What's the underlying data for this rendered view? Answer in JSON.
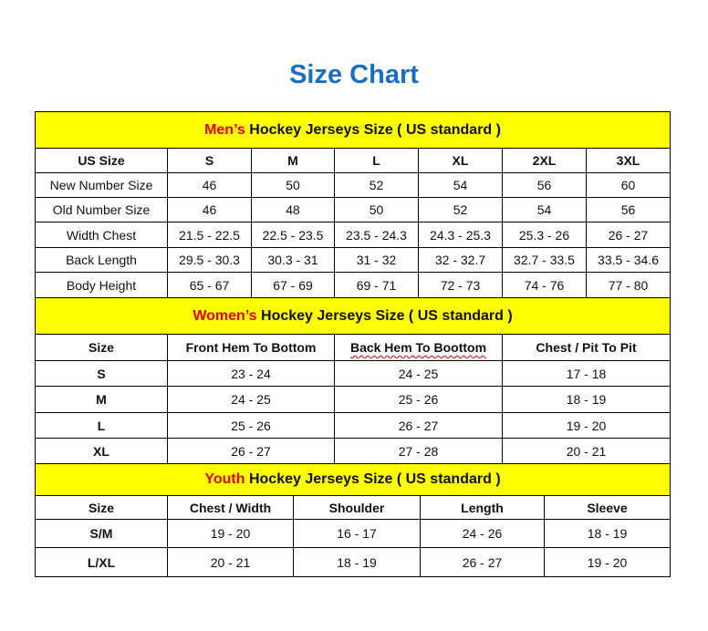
{
  "title": "Size Chart",
  "colors": {
    "title": "#1a6fc0",
    "section_bg": "#ffff00",
    "accent_red": "#e00000"
  },
  "sections": [
    {
      "title_highlight": "Men’s",
      "title_rest": " Hockey Jerseys Size ( US standard )",
      "headers": [
        "US Size",
        "S",
        "M",
        "L",
        "XL",
        "2XL",
        "3XL"
      ],
      "rows": [
        [
          "New Number Size",
          "46",
          "50",
          "52",
          "54",
          "56",
          "60"
        ],
        [
          "Old Number Size",
          "46",
          "48",
          "50",
          "52",
          "54",
          "56"
        ],
        [
          "Width Chest",
          "21.5 - 22.5",
          "22.5 - 23.5",
          "23.5 - 24.3",
          "24.3 - 25.3",
          "25.3 - 26",
          "26 - 27"
        ],
        [
          "Back Length",
          "29.5 - 30.3",
          "30.3 - 31",
          "31 - 32",
          "32 - 32.7",
          "32.7 - 33.5",
          "33.5 - 34.6"
        ],
        [
          "Body Height",
          "65 - 67",
          "67 - 69",
          "69 - 71",
          "72 - 73",
          "74 - 76",
          "77 - 80"
        ]
      ]
    },
    {
      "title_highlight": "Women’s",
      "title_rest": " Hockey Jerseys Size ( US standard )",
      "headers": [
        "Size",
        "Front Hem To Bottom",
        "Back Hem To Boottom",
        "Chest / Pit To Pit"
      ],
      "rows": [
        [
          "S",
          "23 - 24",
          "24 - 25",
          "17 - 18"
        ],
        [
          "M",
          "24 - 25",
          "25 - 26",
          "18 - 19"
        ],
        [
          "L",
          "25 - 26",
          "26 - 27",
          "19 - 20"
        ],
        [
          "XL",
          "26 - 27",
          "27 - 28",
          "20 - 21"
        ]
      ]
    },
    {
      "title_highlight": "Youth",
      "title_rest": " Hockey Jerseys Size ( US standard )",
      "headers": [
        "Size",
        "Chest / Width",
        "Shoulder",
        "Length",
        "Sleeve"
      ],
      "rows": [
        [
          "S/M",
          "19 - 20",
          "16 - 17",
          "24 - 26",
          "18 - 19"
        ],
        [
          "L/XL",
          "20 - 21",
          "18 - 19",
          "26 - 27",
          "19 - 20"
        ]
      ]
    }
  ]
}
